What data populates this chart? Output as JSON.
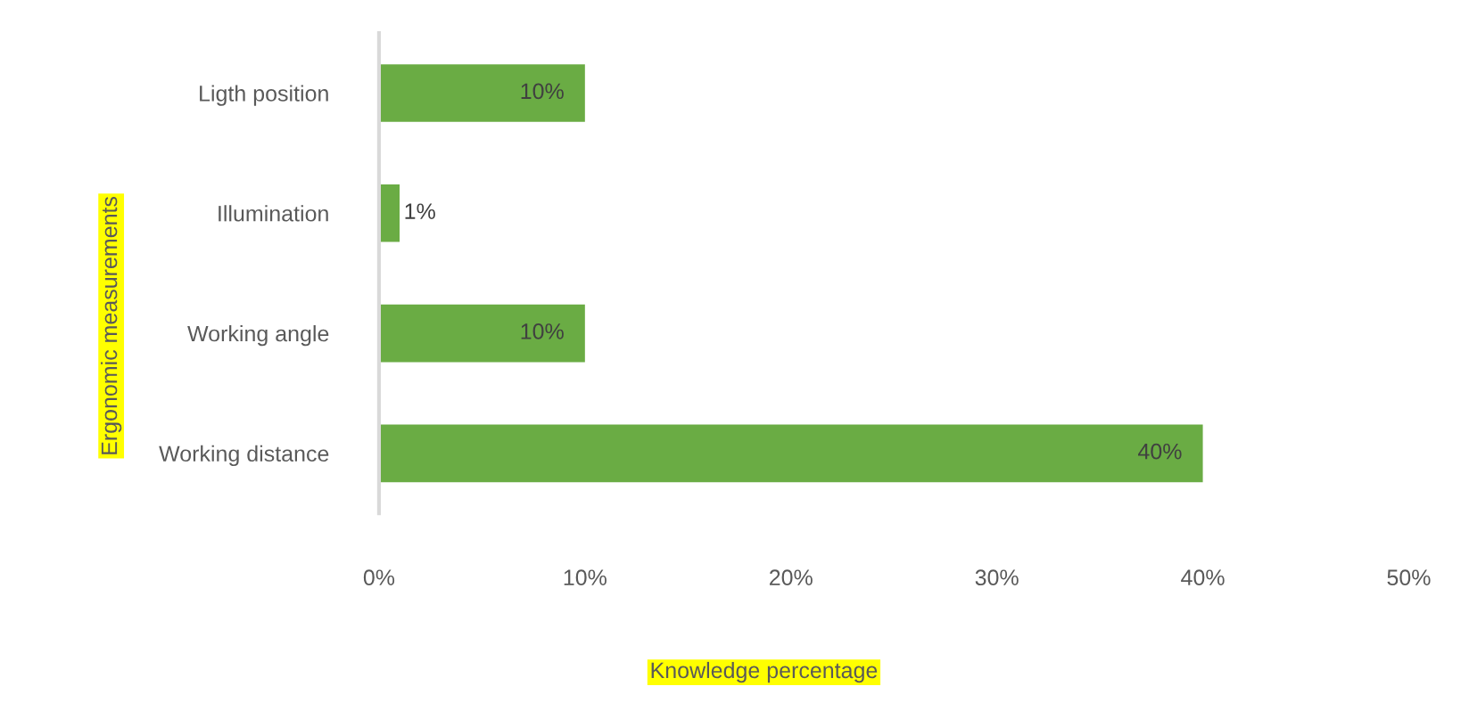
{
  "chart_data": {
    "type": "bar",
    "orientation": "horizontal",
    "xlabel": "Knowledge percentage",
    "ylabel": "Ergonomic measurements",
    "categories": [
      "Ligth position",
      "Illumination",
      "Working angle",
      "Working distance"
    ],
    "values": [
      10,
      1,
      10,
      40
    ],
    "value_labels": [
      "10%",
      "1%",
      "10%",
      "40%"
    ],
    "color": "#6aac44",
    "xlim": [
      0,
      50
    ],
    "xticks": [
      {
        "value": 0,
        "label": "0%"
      },
      {
        "value": 10,
        "label": "10%"
      },
      {
        "value": 20,
        "label": "20%"
      },
      {
        "value": 30,
        "label": "30%"
      },
      {
        "value": 40,
        "label": "40%"
      },
      {
        "value": 50,
        "label": "50%"
      }
    ],
    "grid": false,
    "legend": false
  }
}
